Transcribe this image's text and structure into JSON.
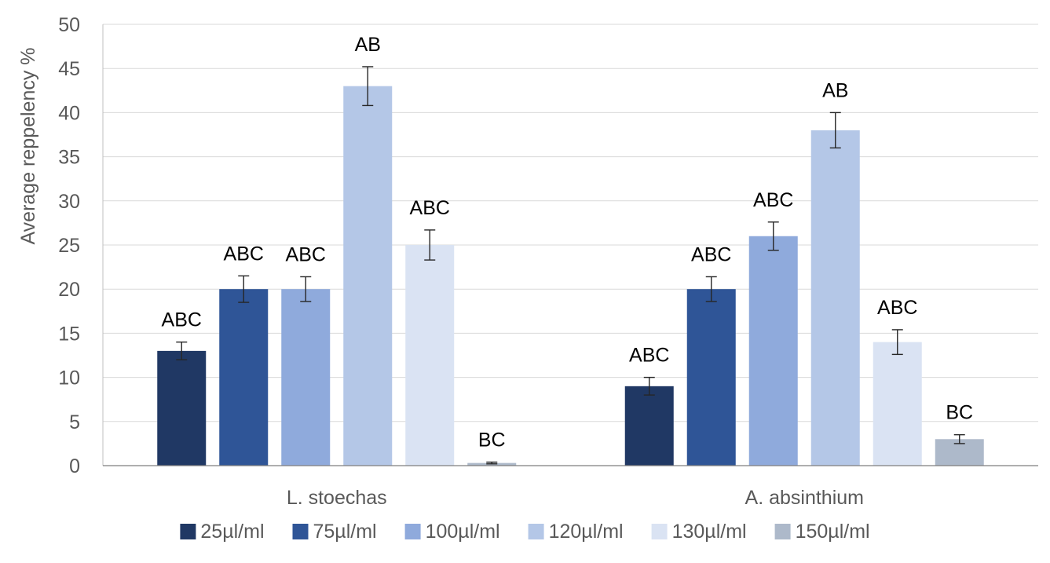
{
  "chart_data": {
    "type": "bar",
    "title": "",
    "xlabel": "",
    "ylabel": "Average reppelency %",
    "ylim": [
      0,
      50
    ],
    "yticks": [
      0,
      5,
      10,
      15,
      20,
      25,
      30,
      35,
      40,
      45,
      50
    ],
    "grid": true,
    "legend": "bottom",
    "categories": [
      "L. stoechas",
      "A. absinthium"
    ],
    "series": [
      {
        "name": "25µl/ml",
        "color": "#203864",
        "values": [
          13,
          9
        ],
        "errors": [
          1.0,
          1.0
        ],
        "labels": [
          "ABC",
          "ABC"
        ]
      },
      {
        "name": "75µl/ml",
        "color": "#2F5597",
        "values": [
          20,
          20
        ],
        "errors": [
          1.5,
          1.4
        ],
        "labels": [
          "ABC",
          "ABC"
        ]
      },
      {
        "name": "100µl/ml",
        "color": "#8FAADC",
        "values": [
          20,
          26
        ],
        "errors": [
          1.4,
          1.6
        ],
        "labels": [
          "ABC",
          "ABC"
        ]
      },
      {
        "name": "120µl/ml",
        "color": "#B4C7E7",
        "values": [
          43,
          38
        ],
        "errors": [
          2.2,
          2.0
        ],
        "labels": [
          "AB",
          "AB"
        ]
      },
      {
        "name": "130µl/ml",
        "color": "#DAE3F3",
        "values": [
          25,
          14
        ],
        "errors": [
          1.7,
          1.4
        ],
        "labels": [
          "ABC",
          "ABC"
        ]
      },
      {
        "name": "150µl/ml",
        "color": "#ADB9CA",
        "values": [
          0.3,
          3
        ],
        "errors": [
          0.1,
          0.5
        ],
        "labels": [
          "BC",
          "BC"
        ]
      }
    ]
  }
}
